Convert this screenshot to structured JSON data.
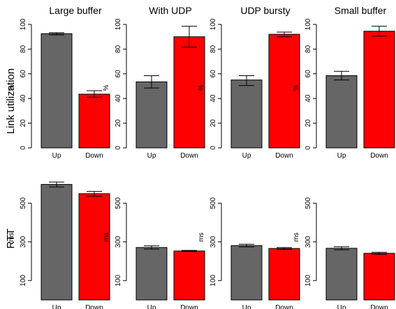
{
  "row_labels": [
    "Link utilization",
    "RTT"
  ],
  "colors": {
    "up": "#666666",
    "down": "#ff0000",
    "axis": "#000000"
  },
  "chart_data": [
    {
      "type": "bar",
      "title": "Large buffer",
      "row": 0,
      "ylabel": "%",
      "ylim": [
        0,
        100
      ],
      "yticks": [
        0,
        20,
        40,
        60,
        80,
        100
      ],
      "categories": [
        "Up",
        "Down"
      ],
      "values": [
        92.5,
        43.5
      ],
      "errors": [
        [
          91.5,
          93.3
        ],
        [
          41,
          46.3
        ]
      ]
    },
    {
      "type": "bar",
      "title": "With UDP",
      "row": 0,
      "ylabel": "%",
      "ylim": [
        0,
        100
      ],
      "yticks": [
        0,
        20,
        40,
        60,
        80,
        100
      ],
      "categories": [
        "Up",
        "Down"
      ],
      "values": [
        53.5,
        90
      ],
      "errors": [
        [
          48.5,
          58.5
        ],
        [
          81.5,
          98.5
        ]
      ]
    },
    {
      "type": "bar",
      "title": "UDP bursty",
      "row": 0,
      "ylabel": "%",
      "ylim": [
        0,
        100
      ],
      "yticks": [
        0,
        20,
        40,
        60,
        80,
        100
      ],
      "categories": [
        "Up",
        "Down"
      ],
      "values": [
        55,
        92
      ],
      "errors": [
        [
          50.5,
          58.5
        ],
        [
          90,
          93.8
        ]
      ]
    },
    {
      "type": "bar",
      "title": "Small buffer",
      "row": 0,
      "ylabel": "%",
      "ylim": [
        0,
        100
      ],
      "yticks": [
        0,
        20,
        40,
        60,
        80,
        100
      ],
      "categories": [
        "Up",
        "Down"
      ],
      "values": [
        58.5,
        94.5
      ],
      "errors": [
        [
          55,
          62
        ],
        [
          90.5,
          98.5
        ]
      ]
    },
    {
      "type": "bar",
      "title": "",
      "row": 1,
      "ylabel": "ms",
      "ylim": [
        0,
        620
      ],
      "yticks": [
        100,
        300,
        500
      ],
      "categories": [
        "Up",
        "Down"
      ],
      "values": [
        597,
        549
      ],
      "errors": [
        [
          584,
          609
        ],
        [
          536,
          561
        ]
      ]
    },
    {
      "type": "bar",
      "title": "",
      "row": 1,
      "ylabel": "ms",
      "ylim": [
        0,
        620
      ],
      "yticks": [
        100,
        300,
        500
      ],
      "categories": [
        "Up",
        "Down"
      ],
      "values": [
        271,
        253
      ],
      "errors": [
        [
          263,
          280
        ],
        [
          250,
          256
        ]
      ]
    },
    {
      "type": "bar",
      "title": "",
      "row": 1,
      "ylabel": "ms",
      "ylim": [
        0,
        620
      ],
      "yticks": [
        100,
        300,
        500
      ],
      "categories": [
        "Up",
        "Down"
      ],
      "values": [
        281,
        266
      ],
      "errors": [
        [
          274,
          288
        ],
        [
          261,
          271
        ]
      ]
    },
    {
      "type": "bar",
      "title": "",
      "row": 1,
      "ylabel": "ms",
      "ylim": [
        0,
        620
      ],
      "yticks": [
        100,
        300,
        500
      ],
      "categories": [
        "Up",
        "Down"
      ],
      "values": [
        267,
        241
      ],
      "errors": [
        [
          259,
          275
        ],
        [
          236,
          246
        ]
      ]
    }
  ]
}
